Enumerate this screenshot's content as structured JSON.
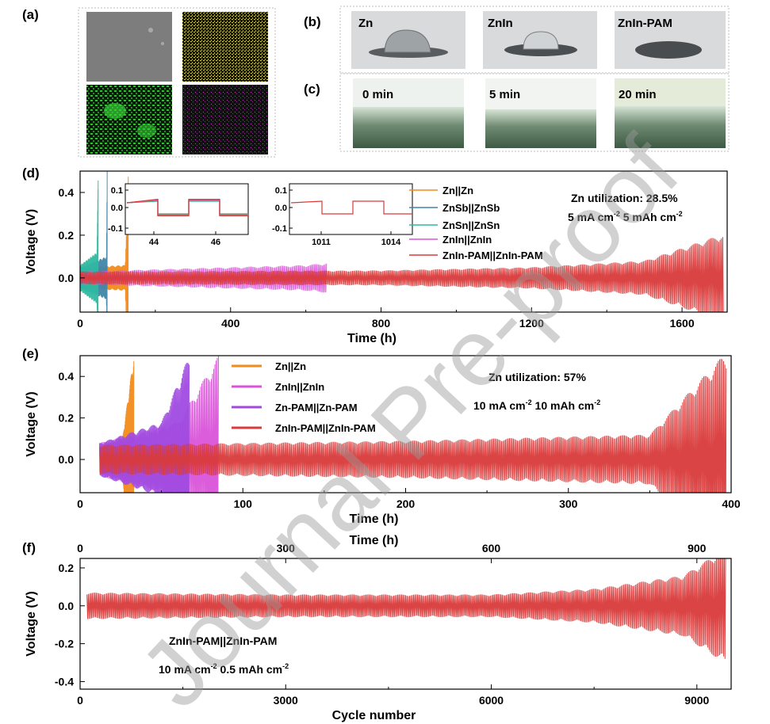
{
  "panels": {
    "a": "(a)",
    "b": "(b)",
    "c": "(c)",
    "d": "(d)",
    "e": "(e)",
    "f": "(f)"
  },
  "panel_b": {
    "labels": [
      "Zn",
      "ZnIn",
      "ZnIn-PAM"
    ]
  },
  "panel_c": {
    "labels": [
      "0 min",
      "5 min",
      "20 min"
    ]
  },
  "watermark": "Journal Pre-proof",
  "colors": {
    "zn": "#f28a1c",
    "znsb": "#3f86a8",
    "znsn": "#2fb8a0",
    "znin": "#d954d9",
    "znin_pam": "#d93a3a",
    "zn_pam": "#a04ae0"
  },
  "chart_data": [
    {
      "id": "d",
      "type": "line",
      "xlabel": "Time (h)",
      "ylabel": "Voltage (V)",
      "xlim": [
        0,
        1720
      ],
      "ylim": [
        -0.16,
        0.5
      ],
      "xticks": [
        0,
        400,
        800,
        1200,
        1600
      ],
      "yticks": [
        0.0,
        0.2,
        0.4
      ],
      "xtick_labels": [
        "0",
        "400",
        "800",
        "1200",
        "1600"
      ],
      "ytick_labels": [
        "0.0",
        "0.2",
        "0.4"
      ],
      "annotations": [
        "Zn utilization: 28.5%",
        "5 mA cm",
        "-2",
        " 5 mAh cm",
        "-2"
      ],
      "series": [
        {
          "name": "Zn||Zn",
          "color_key": "zn",
          "t_end": 128,
          "envelope": [
            [
              0,
              0.05
            ],
            [
              120,
              0.06
            ],
            [
              128,
              0.5
            ]
          ]
        },
        {
          "name": "ZnSb||ZnSb",
          "color_key": "znsb",
          "t_end": 72,
          "envelope": [
            [
              0,
              0.05
            ],
            [
              70,
              0.1
            ],
            [
              72,
              0.5
            ]
          ]
        },
        {
          "name": "ZnSn||ZnSn",
          "color_key": "znsn",
          "t_end": 48,
          "envelope": [
            [
              0,
              0.06
            ],
            [
              45,
              0.12
            ],
            [
              48,
              0.5
            ]
          ]
        },
        {
          "name": "ZnIn||ZnIn",
          "color_key": "znin",
          "t_end": 655,
          "envelope": [
            [
              0,
              0.03
            ],
            [
              600,
              0.06
            ],
            [
              655,
              0.07
            ]
          ]
        },
        {
          "name": "ZnIn-PAM||ZnIn-PAM",
          "color_key": "znin_pam",
          "t_end": 1710,
          "envelope": [
            [
              0,
              0.03
            ],
            [
              800,
              0.035
            ],
            [
              1200,
              0.05
            ],
            [
              1500,
              0.08
            ],
            [
              1700,
              0.2
            ]
          ]
        }
      ],
      "insets": [
        {
          "xticks": [
            "44",
            "46"
          ],
          "yticks": [
            "0.1",
            "0.0",
            "-0.1"
          ]
        },
        {
          "xticks": [
            "1011",
            "1014"
          ],
          "yticks": [
            "0.1",
            "0.0",
            "-0.1"
          ]
        }
      ]
    },
    {
      "id": "e",
      "type": "line",
      "xlabel": "Time (h)",
      "ylabel": "Voltage (V)",
      "xlim": [
        0,
        400
      ],
      "ylim": [
        -0.16,
        0.5
      ],
      "xticks": [
        0,
        100,
        200,
        300,
        400
      ],
      "yticks": [
        0.0,
        0.2,
        0.4
      ],
      "xtick_labels": [
        "0",
        "100",
        "200",
        "300",
        "400"
      ],
      "ytick_labels": [
        "0.0",
        "0.2",
        "0.4"
      ],
      "annotations": [
        "Zn utilization: 57%",
        "10 mA cm",
        "-2",
        " 10 mAh cm",
        "-2"
      ],
      "series": [
        {
          "name": "Zn||Zn",
          "color_key": "zn",
          "t_end": 33,
          "envelope": [
            [
              12,
              0.06
            ],
            [
              26,
              0.1
            ],
            [
              33,
              0.5
            ]
          ]
        },
        {
          "name": "ZnIn||ZnIn",
          "color_key": "znin",
          "t_end": 85,
          "envelope": [
            [
              12,
              0.08
            ],
            [
              60,
              0.18
            ],
            [
              85,
              0.5
            ]
          ]
        },
        {
          "name": "Zn-PAM||Zn-PAM",
          "color_key": "zn_pam",
          "t_end": 67,
          "envelope": [
            [
              12,
              0.08
            ],
            [
              50,
              0.18
            ],
            [
              67,
              0.5
            ]
          ]
        },
        {
          "name": "ZnIn-PAM||ZnIn-PAM",
          "color_key": "znin_pam",
          "t_end": 397,
          "envelope": [
            [
              12,
              0.07
            ],
            [
              200,
              0.09
            ],
            [
              350,
              0.12
            ],
            [
              395,
              0.5
            ]
          ]
        }
      ]
    },
    {
      "id": "f",
      "type": "line",
      "xlabel": "Cycle number",
      "x2label": "Time (h)",
      "ylabel": "Voltage (V)",
      "xlim": [
        0,
        9500
      ],
      "x2lim": [
        0,
        950
      ],
      "ylim": [
        -0.44,
        0.25
      ],
      "xticks": [
        0,
        3000,
        6000,
        9000
      ],
      "x2ticks": [
        0,
        300,
        600,
        900
      ],
      "yticks": [
        0.2,
        0.0,
        -0.2,
        -0.4
      ],
      "xtick_labels": [
        "0",
        "3000",
        "6000",
        "9000"
      ],
      "x2tick_labels": [
        "0",
        "300",
        "600",
        "900"
      ],
      "ytick_labels": [
        "0.2",
        "0.0",
        "-0.2",
        "-0.4"
      ],
      "annotations": [
        "ZnIn-PAM||ZnIn-PAM",
        "10 mA cm",
        "-2",
        " 0.5 mAh cm",
        "-2"
      ],
      "series": [
        {
          "name": "ZnIn-PAM||ZnIn-PAM",
          "color_key": "znin_pam",
          "t_end": 9420,
          "envelope": [
            [
              100,
              0.07
            ],
            [
              3000,
              0.06
            ],
            [
              6000,
              0.06
            ],
            [
              7500,
              0.09
            ],
            [
              8800,
              0.16
            ],
            [
              9400,
              0.3
            ]
          ]
        }
      ]
    }
  ]
}
